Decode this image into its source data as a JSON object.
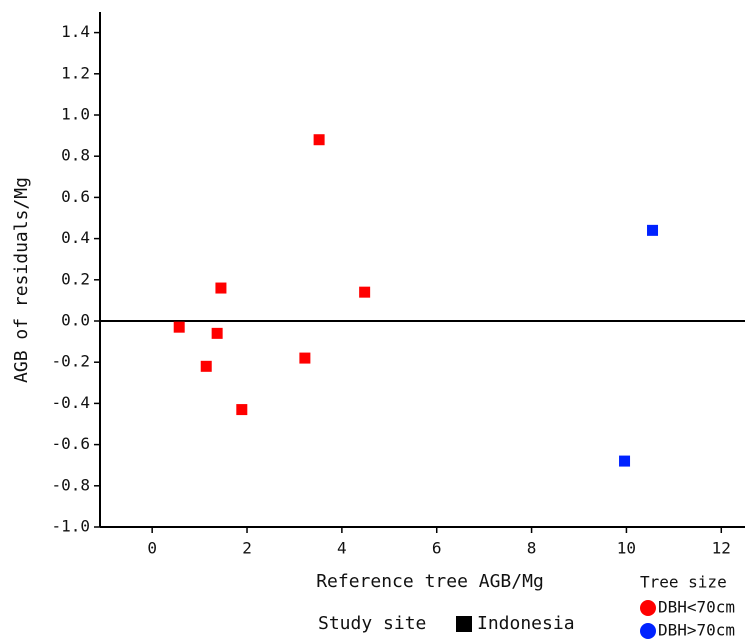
{
  "chart_data": {
    "type": "scatter",
    "x_label": "Reference tree AGB/Mg",
    "y_label": "AGB of residuals/Mg",
    "xlim": [
      -1.1,
      12.5
    ],
    "xticks": [
      0,
      2,
      4,
      6,
      8,
      10,
      12
    ],
    "ylim": [
      -1.0,
      1.5
    ],
    "yticks": [
      {
        "value": -1.0,
        "label": "-1.0"
      },
      -0.8,
      -0.6,
      -0.4,
      -0.2,
      {
        "value": 0,
        "label": "0.0"
      },
      0.2,
      0.4,
      0.6,
      0.8,
      {
        "value": 1.0,
        "label": "1.0"
      },
      1.2,
      1.4
    ],
    "hline": 0,
    "legend_title": "Tree size",
    "series": [
      {
        "name": "DBH<70cm",
        "color": "#ff0000",
        "x": [
          0.57,
          1.37,
          1.45,
          1.14,
          1.89,
          3.22,
          3.52,
          4.48
        ],
        "values": [
          -0.03,
          -0.06,
          0.16,
          -0.22,
          -0.43,
          -0.18,
          0.88,
          0.14
        ]
      },
      {
        "name": "DBH>70cm",
        "color": "#0022ff",
        "x": [
          10.55,
          9.96
        ],
        "values": [
          0.44,
          -0.68
        ]
      }
    ],
    "shape_legend": {
      "title": "Study site",
      "label": "Indonesia"
    }
  }
}
